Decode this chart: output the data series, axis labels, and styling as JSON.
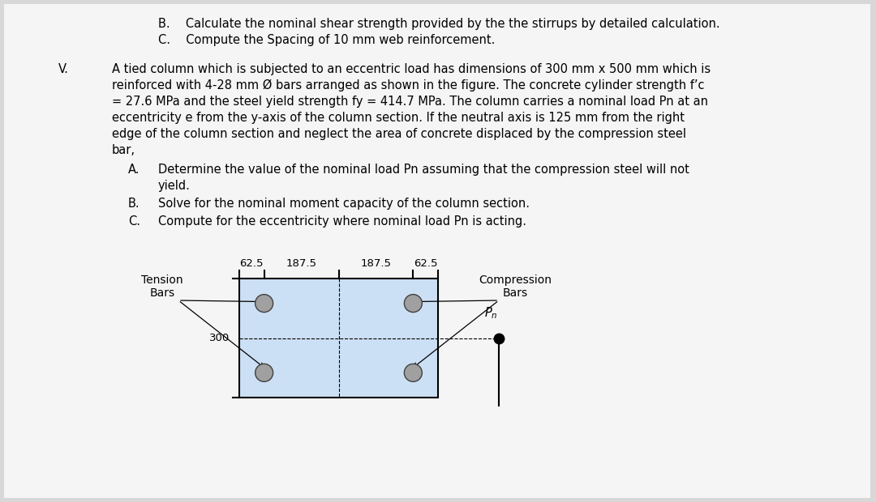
{
  "bg_color": "#d8d8d8",
  "panel_color": "#f5f5f5",
  "text_color": "#000000",
  "col_fill": "#cce0f5",
  "col_edge": "#000000",
  "font_size_main": 10.5,
  "font_size_diagram": 9.5,
  "lines_top": [
    "B.  Calculate the nominal shear strength provided by the the stirrups by detailed calculation.",
    "C.  Compute the Spacing of 10 mm web reinforcement."
  ],
  "roman_V": "V.",
  "para_lines": [
    "A tied column which is subjected to an eccentric load has dimensions of 300 mm x 500 mm which is",
    "reinforced with 4-28 mm Ø bars arranged as shown in the figure. The concrete cylinder strength f’c",
    "= 27.6 MPa and the steel yield strength fy = 414.7 MPa. The column carries a nominal load Pn at an",
    "eccentricity e from the y-axis of the column section. If the neutral axis is 125 mm from the right",
    "edge of the column section and neglect the area of concrete displaced by the compression steel",
    "bar,"
  ],
  "sub_items": [
    [
      "A.",
      "Determine the value of the nominal load Pn assuming that the compression steel will not",
      "yield."
    ],
    [
      "B.",
      "Solve for the nominal moment capacity of the column section."
    ],
    [
      "C.",
      "Compute for the eccentricity where nominal load Pn is acting."
    ]
  ],
  "label_tension": "Tension\nBars",
  "label_compression": "Compression\nBars",
  "label_Pn": "P_n",
  "dim_62_5": "62.5",
  "dim_187_5": "187.5",
  "dim_300": "300"
}
